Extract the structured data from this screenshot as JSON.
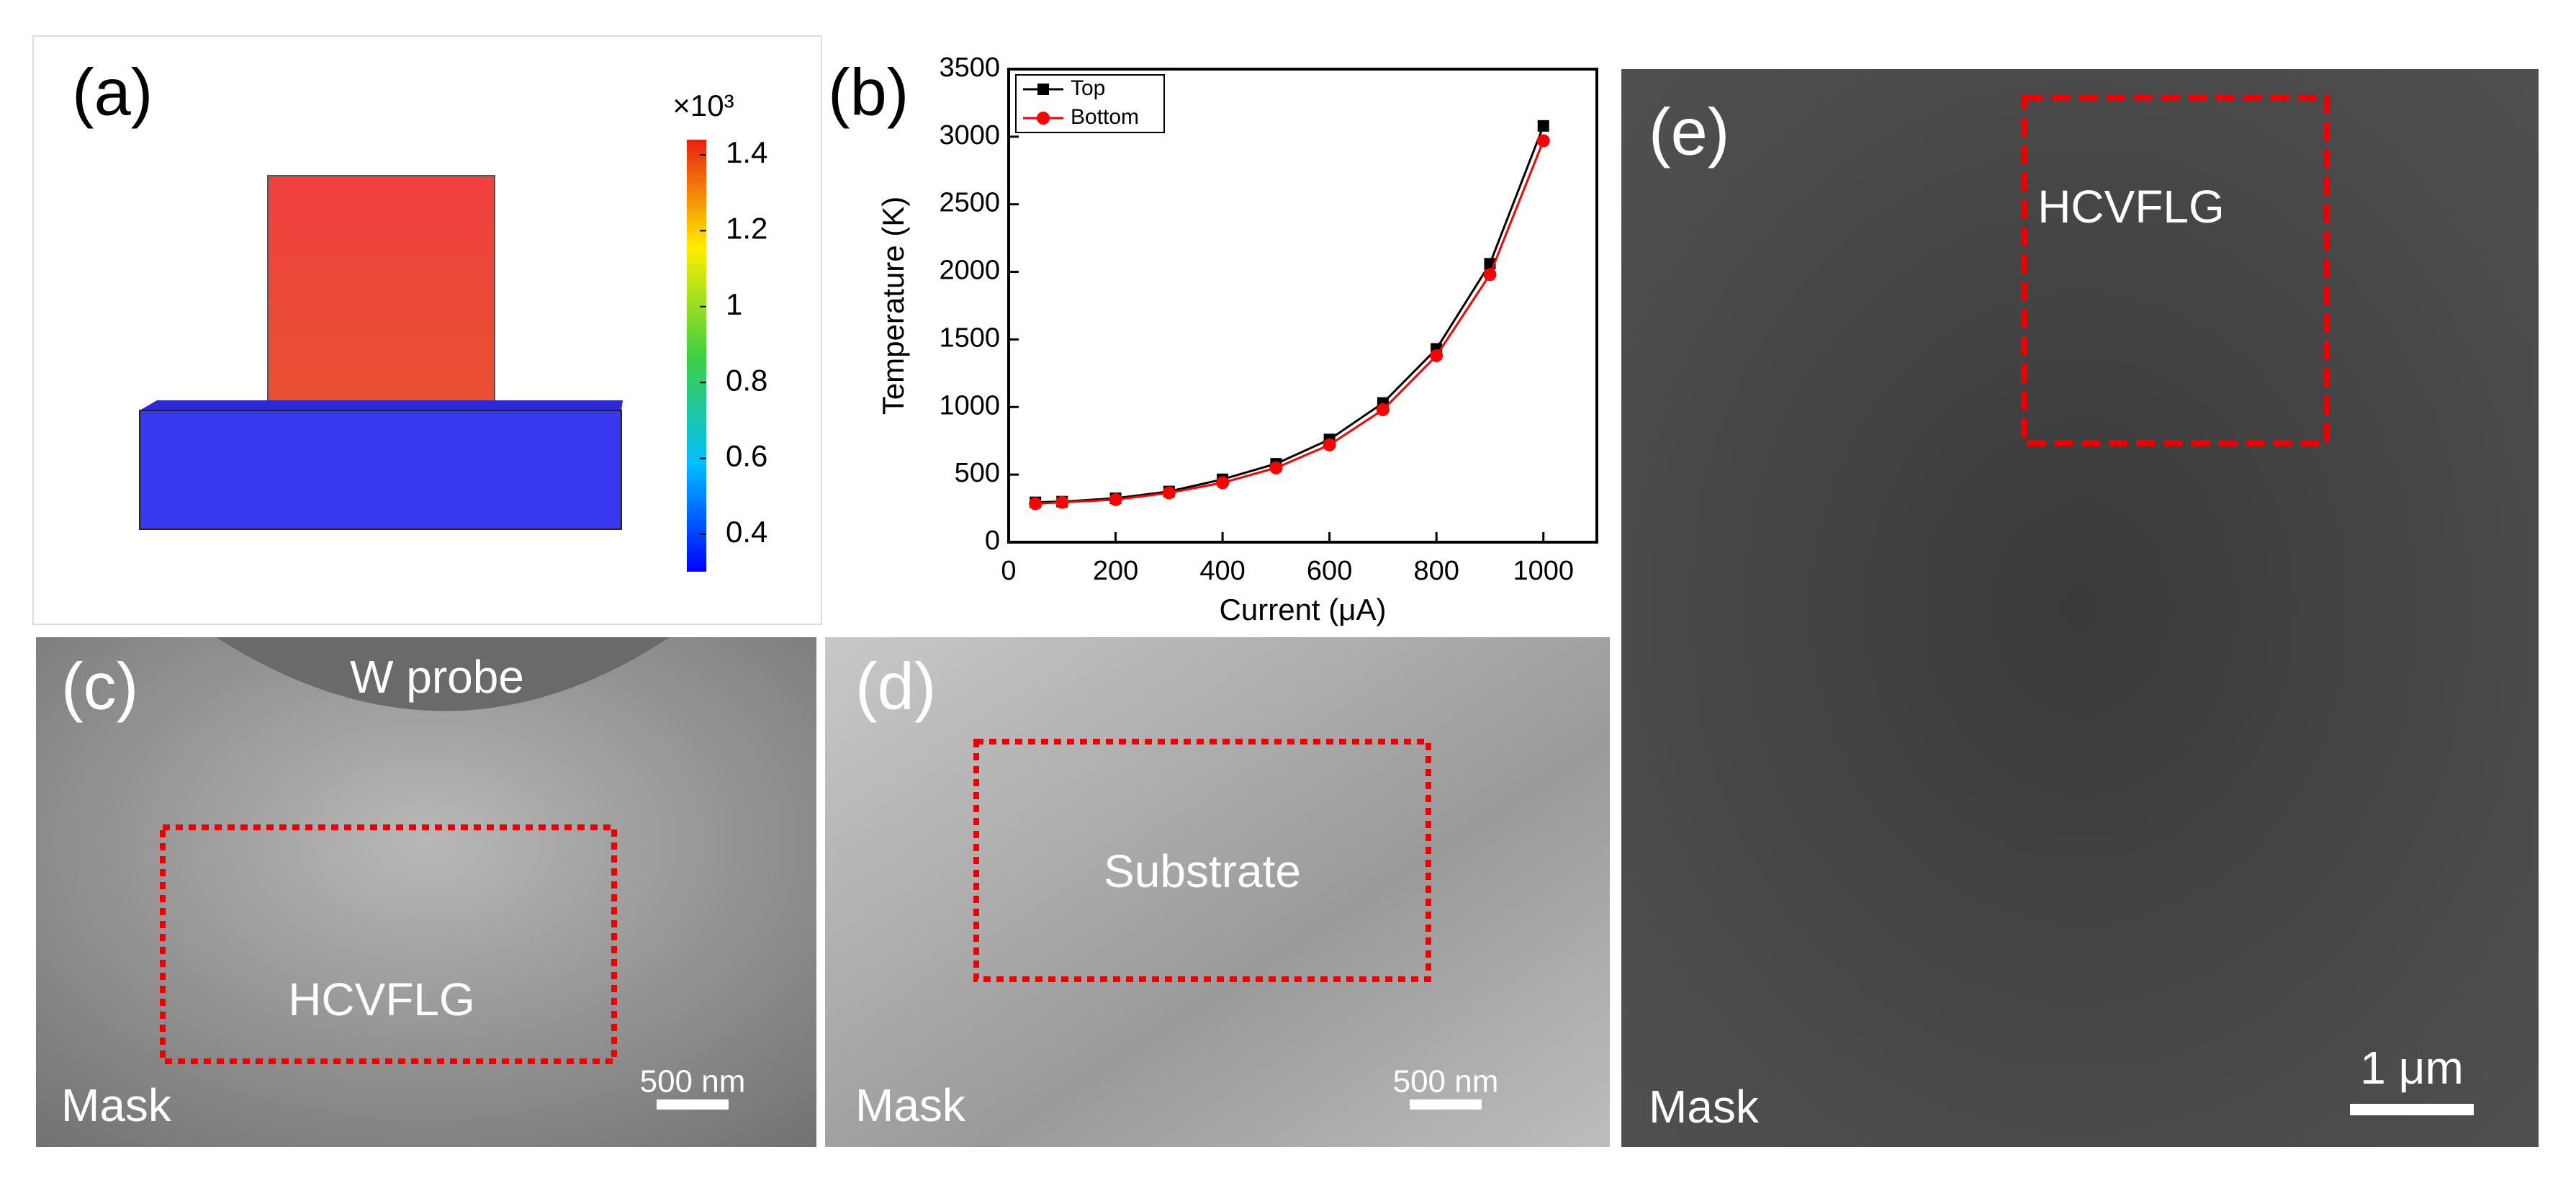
{
  "panels": {
    "a": {
      "label": "(a)",
      "colorbar": {
        "multiplier": "×10³",
        "ticks": [
          1.4,
          1.2,
          1,
          0.8,
          0.6,
          0.4
        ]
      }
    },
    "c": {
      "label": "(c)",
      "probe": "W probe",
      "region": "HCVFLG",
      "mask": "Mask",
      "scale": "500 nm"
    },
    "d": {
      "label": "(d)",
      "region": "Substrate",
      "mask": "Mask",
      "scale": "500 nm"
    },
    "e": {
      "label": "(e)",
      "region": "HCVFLG",
      "mask": "Mask",
      "scale": "1 μm"
    }
  },
  "chart_data": {
    "type": "line",
    "label": "(b)",
    "x_label": "Current (μA)",
    "y_label": "Temperature (K)",
    "x": [
      50,
      100,
      200,
      300,
      400,
      500,
      600,
      700,
      800,
      900,
      1000
    ],
    "series": [
      {
        "name": "Top",
        "color": "#000000",
        "marker": "square",
        "values": [
          295,
          300,
          325,
          375,
          465,
          580,
          760,
          1030,
          1430,
          2060,
          3080
        ]
      },
      {
        "name": "Bottom",
        "color": "#ff0000",
        "marker": "circle",
        "values": [
          285,
          295,
          315,
          365,
          440,
          550,
          720,
          980,
          1380,
          1980,
          2970
        ]
      }
    ],
    "xlim": [
      0,
      1100
    ],
    "ylim": [
      0,
      3500
    ],
    "xticks": [
      0,
      200,
      400,
      600,
      800,
      1000
    ],
    "yticks": [
      0,
      500,
      1000,
      1500,
      2000,
      2500,
      3000,
      3500
    ],
    "legend": "upper left"
  }
}
